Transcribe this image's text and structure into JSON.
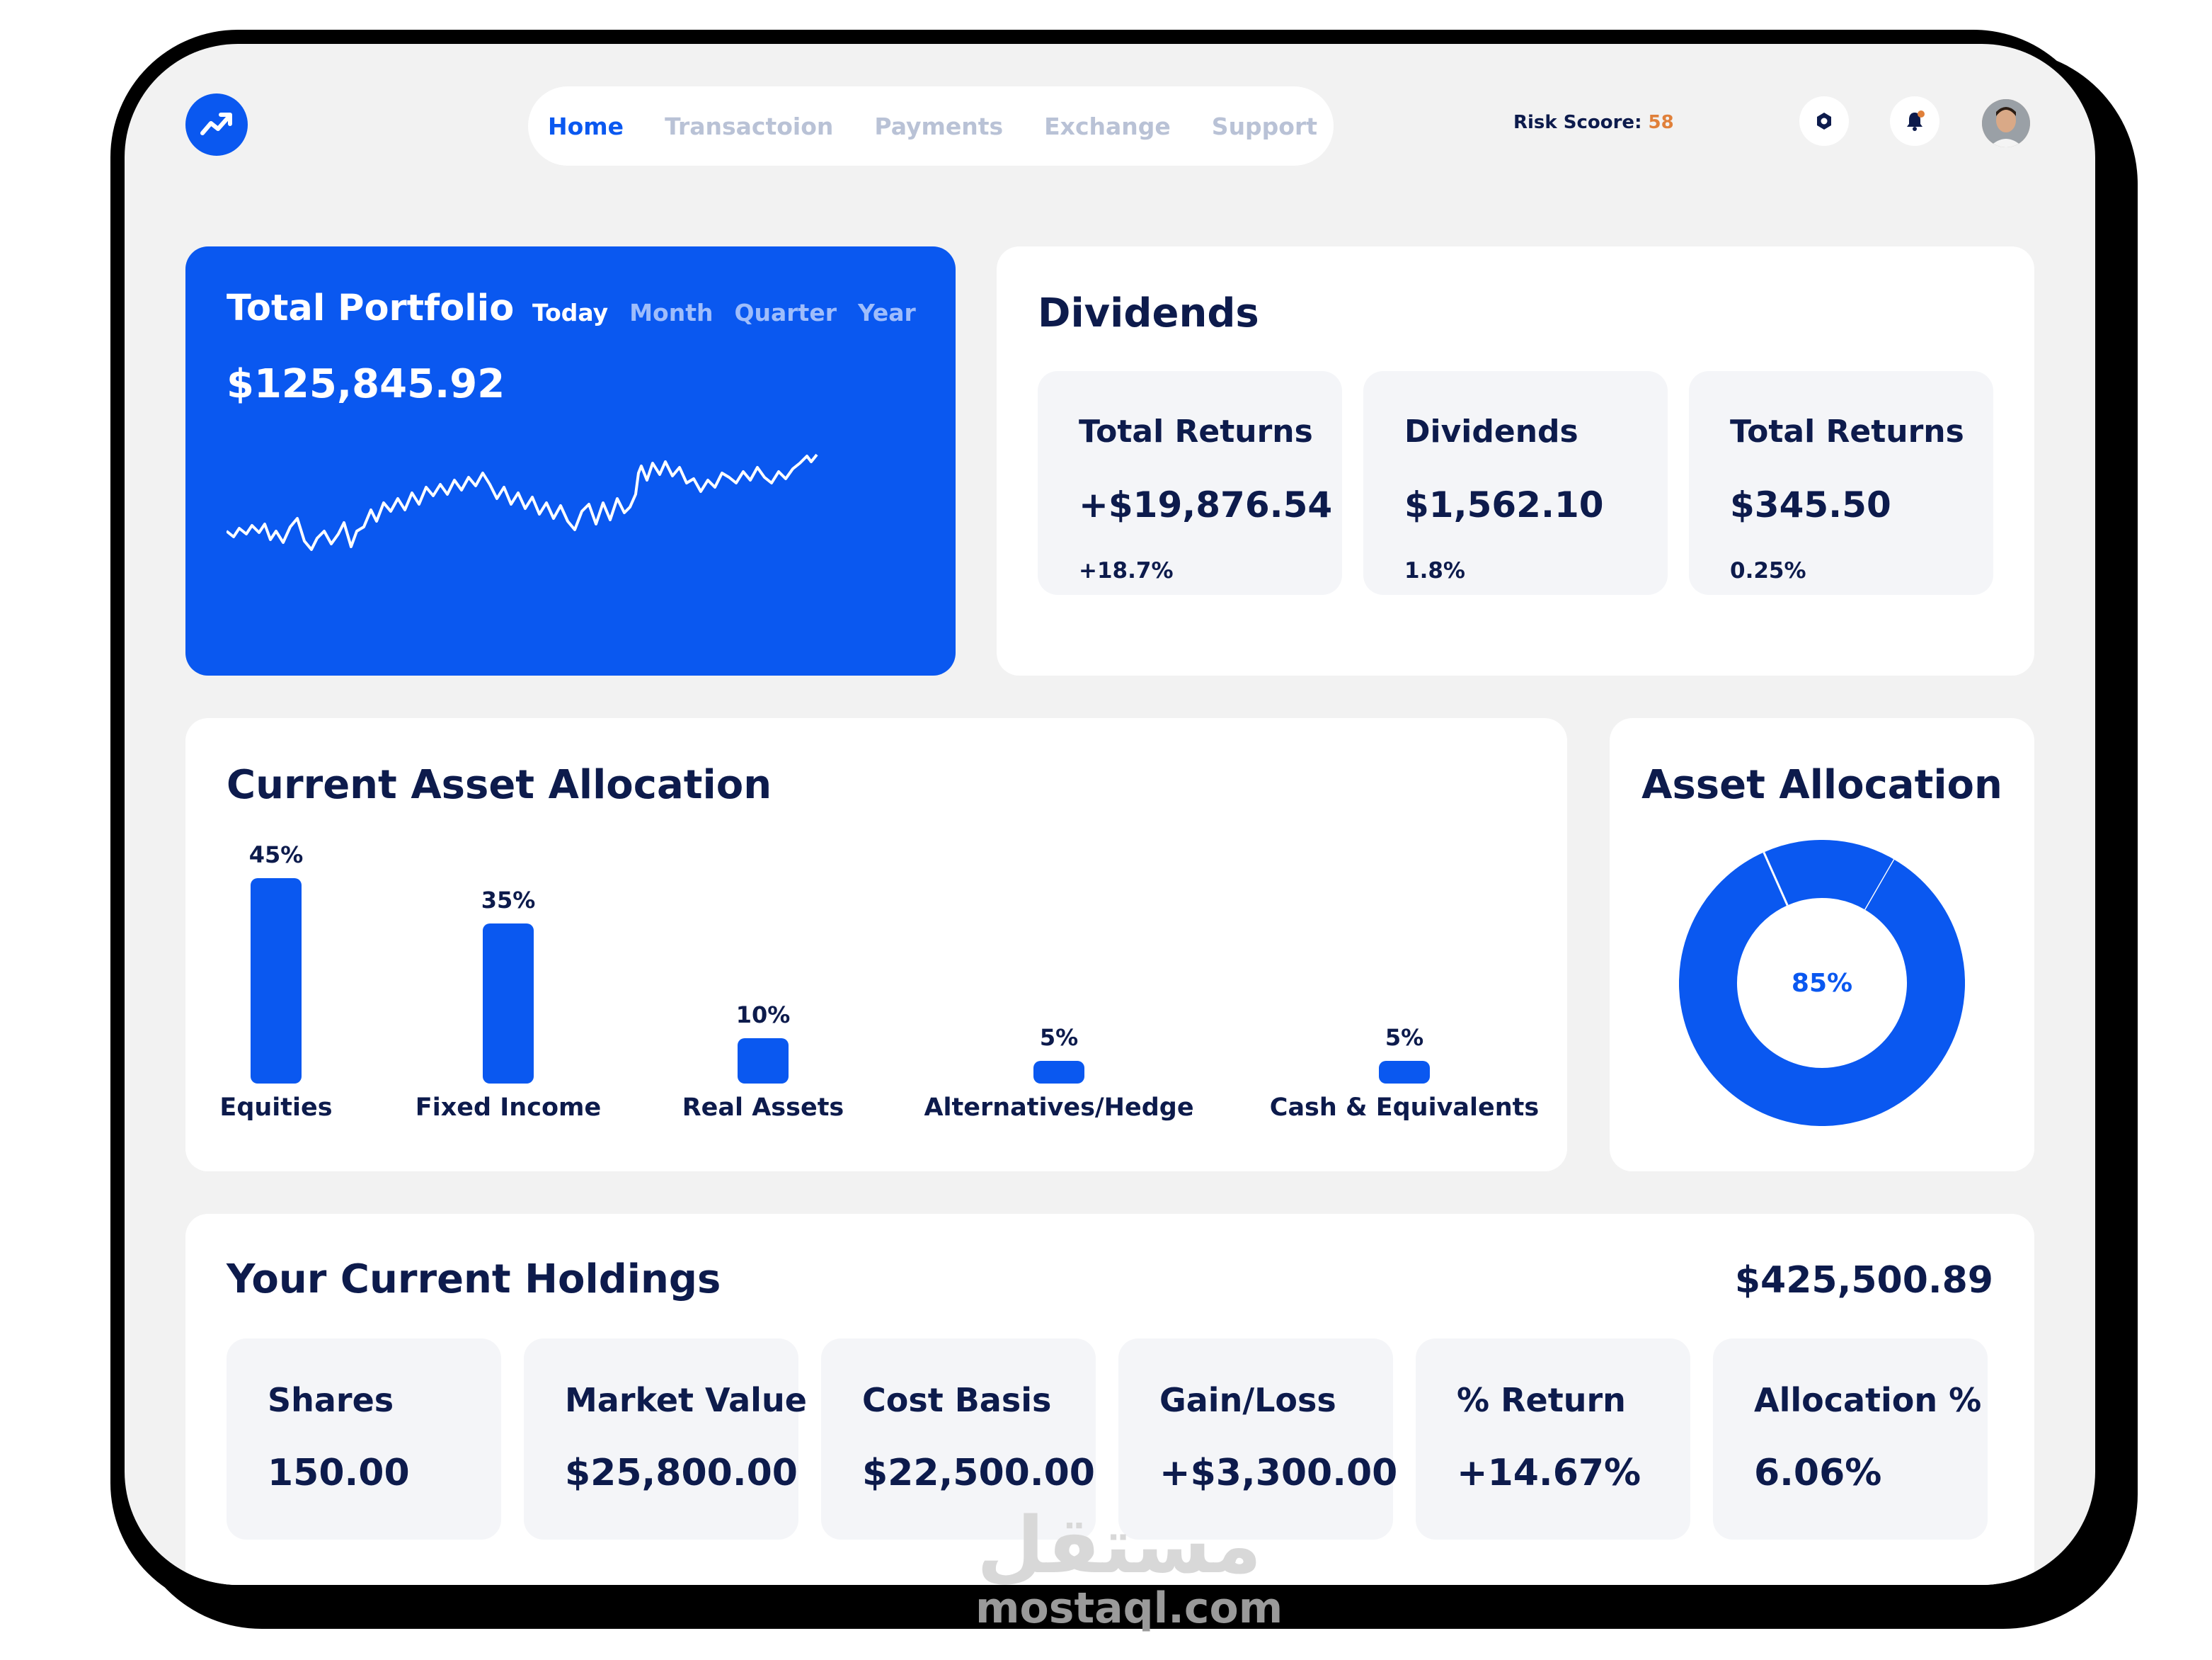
{
  "nav": {
    "items": [
      "Home",
      "Transactoion",
      "Payments",
      "Exchange",
      "Support"
    ],
    "active": "Home"
  },
  "risk": {
    "label": "Risk Scoore:",
    "value": "58"
  },
  "icons": [
    "logo-trend-icon",
    "settings-icon",
    "bell-icon",
    "avatar"
  ],
  "colors": {
    "primary": "#0a58f0",
    "text": "#0d1b4c",
    "accent": "#e0803a",
    "muted": "#b9c2d6"
  },
  "portfolio": {
    "title": "Total Portfolio",
    "tabs": [
      "Today",
      "Month",
      "Quarter",
      "Year"
    ],
    "active_tab": "Today",
    "value": "$125,845.92"
  },
  "dividends": {
    "title": "Dividends",
    "stats": [
      {
        "label": "Total Returns",
        "value": "+$19,876.54",
        "pct": "+18.7%"
      },
      {
        "label": "Dividends",
        "value": "$1,562.10",
        "pct": "1.8%"
      },
      {
        "label": "Total Returns",
        "value": "$345.50",
        "pct": "0.25%"
      }
    ]
  },
  "allocation": {
    "title": "Current Asset Allocation"
  },
  "chart_data": [
    {
      "type": "bar",
      "title": "Current Asset Allocation",
      "categories": [
        "Equities",
        "Fixed Income",
        "Real Assets",
        "Alternatives/Hedge",
        "Cash & Equivalents"
      ],
      "values": [
        45,
        35,
        10,
        5,
        5
      ],
      "labels": [
        "45%",
        "35%",
        "10%",
        "5%",
        "5%"
      ]
    },
    {
      "type": "pie",
      "title": "Asset Allocation",
      "center_label": "85%",
      "values": [
        85,
        15
      ]
    }
  ],
  "donut": {
    "title": "Asset Allocation",
    "center_label": "85%"
  },
  "holdings": {
    "title": "Your Current Holdings",
    "total": "$425,500.89",
    "cells": [
      {
        "label": "Shares",
        "value": "150.00"
      },
      {
        "label": "Market Value",
        "value": "$25,800.00"
      },
      {
        "label": "Cost Basis",
        "value": "$22,500.00"
      },
      {
        "label": "Gain/Loss",
        "value": "+$3,300.00"
      },
      {
        "label": "% Return",
        "value": "+14.67%"
      },
      {
        "label": "Allocation %",
        "value": "6.06%"
      }
    ]
  },
  "watermark": {
    "arabic": "مستقل",
    "text": "mostaql.com"
  }
}
